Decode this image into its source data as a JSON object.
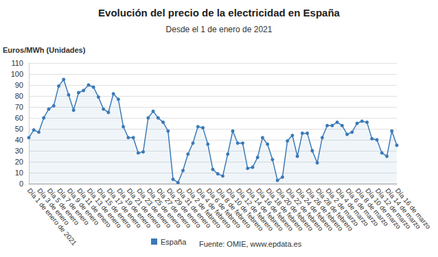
{
  "chart_data": {
    "type": "line",
    "title": "Evolución del precio de la electricidad en España",
    "subtitle": "Desde el 1 de enero de 2021",
    "y_label": "Euros/MWh (Unidades)",
    "annotations": [
      "Fuente: OMIE, www.epdata.es"
    ],
    "categories": [
      "Día 1 de enero de 2021",
      null,
      "Día 3 de enero",
      null,
      "Día 5 de enero",
      null,
      "Día 7 de enero",
      null,
      "Día 9 de enero",
      null,
      "Día 11 de enero",
      null,
      "Día 13 de enero",
      null,
      "Día 15 de enero",
      null,
      "Día 17 de enero",
      null,
      "Día 19 de enero",
      null,
      "Día 21 de enero",
      null,
      "Día 23 de enero",
      null,
      "Día 25 de enero",
      null,
      "Día 27 de enero",
      null,
      "Día 29 de enero",
      null,
      "Día 31 de enero",
      null,
      "Día 2 de febrero",
      null,
      "Día 4 de febrero",
      null,
      "Día 6 de febrero",
      null,
      "Día 8 de febrero",
      null,
      "Día 10 de febrero",
      null,
      "Día 12 de febrero",
      null,
      "Día 14 de febrero",
      null,
      "Día 16 de febrero",
      null,
      "Día 18 de febrero",
      null,
      "Día 20 de febrero",
      null,
      "Día 22 de febrero",
      null,
      "Día 24 de febrero",
      null,
      "Día 26 de febrero",
      null,
      "Día 28 de febrero",
      null,
      "Día 2 de marzo",
      null,
      "Día 4 de marzo",
      null,
      "Día 6 de marzo",
      null,
      "Día 8 de marzo",
      null,
      "Día 10 de marzo",
      null,
      "Día 12 de marzo",
      null,
      "Día 14 de marzo",
      null,
      "Día 16 de marzo"
    ],
    "series": [
      {
        "name": "España",
        "color": "#3a7ab8",
        "marker": "circle",
        "values": [
          42,
          49,
          47,
          60,
          68,
          71,
          89,
          95,
          81,
          67,
          83,
          85,
          90,
          88,
          79,
          68,
          65,
          82,
          77,
          52,
          42,
          42,
          28,
          29,
          60,
          66,
          60,
          56,
          48,
          4,
          1,
          12,
          27,
          37,
          52,
          51,
          36,
          13,
          9,
          7,
          27,
          48,
          37,
          37,
          14,
          15,
          24,
          42,
          36,
          22,
          3,
          6,
          39,
          44,
          25,
          46,
          46,
          30,
          19,
          42,
          53,
          53,
          56,
          53,
          45,
          47,
          55,
          57,
          56,
          41,
          40,
          28,
          25,
          48,
          35
        ]
      }
    ],
    "ylim": [
      0,
      110
    ],
    "yticks": [
      0,
      10,
      20,
      30,
      40,
      50,
      60,
      70,
      80,
      90,
      100,
      110
    ],
    "grid": true,
    "legend": "bottom"
  }
}
